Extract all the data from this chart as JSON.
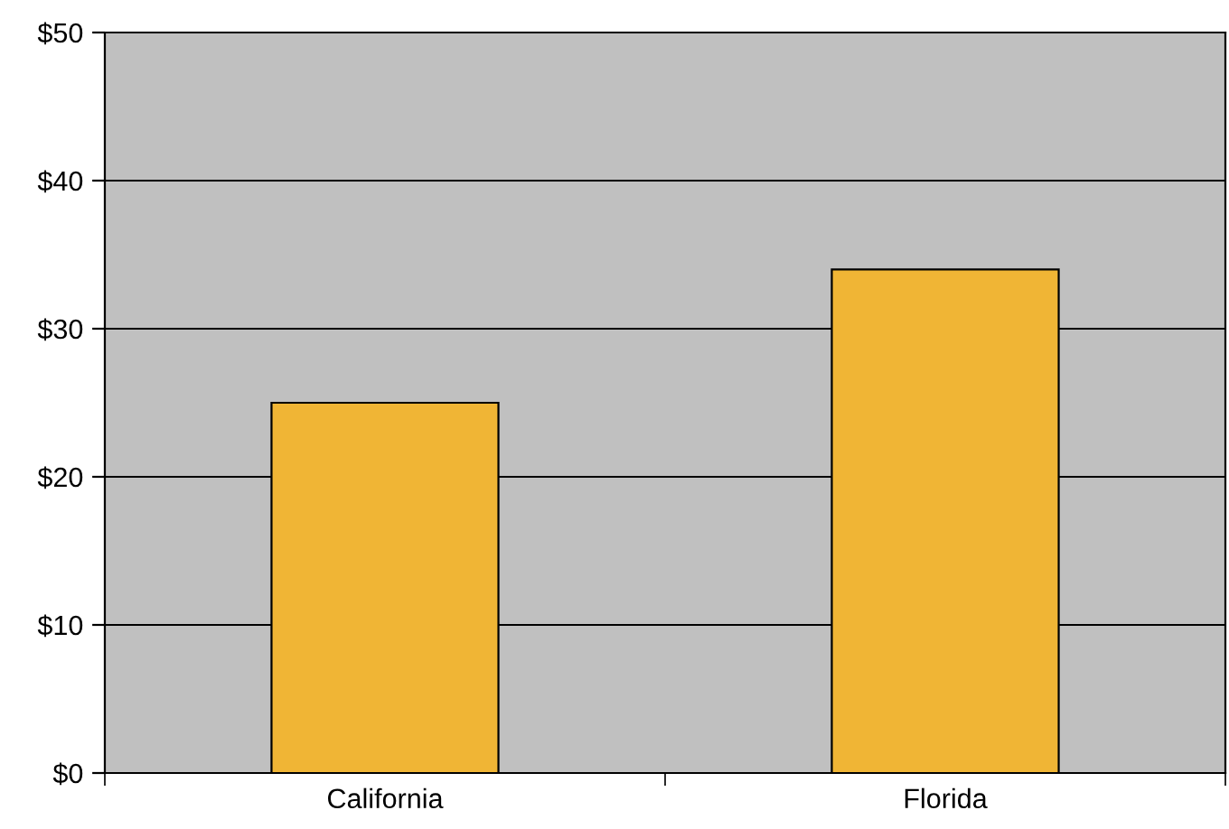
{
  "chart_data": {
    "type": "bar",
    "categories": [
      "California",
      "Florida"
    ],
    "values": [
      25,
      34
    ],
    "color": "#f0b535",
    "ylim": [
      0,
      50
    ],
    "yticks": [
      {
        "value": 0,
        "label": "$0"
      },
      {
        "value": 10,
        "label": "$10"
      },
      {
        "value": 20,
        "label": "$20"
      },
      {
        "value": 30,
        "label": "$30"
      },
      {
        "value": 40,
        "label": "$40"
      },
      {
        "value": 50,
        "label": "$50"
      }
    ],
    "grid": "y",
    "legend": false
  }
}
